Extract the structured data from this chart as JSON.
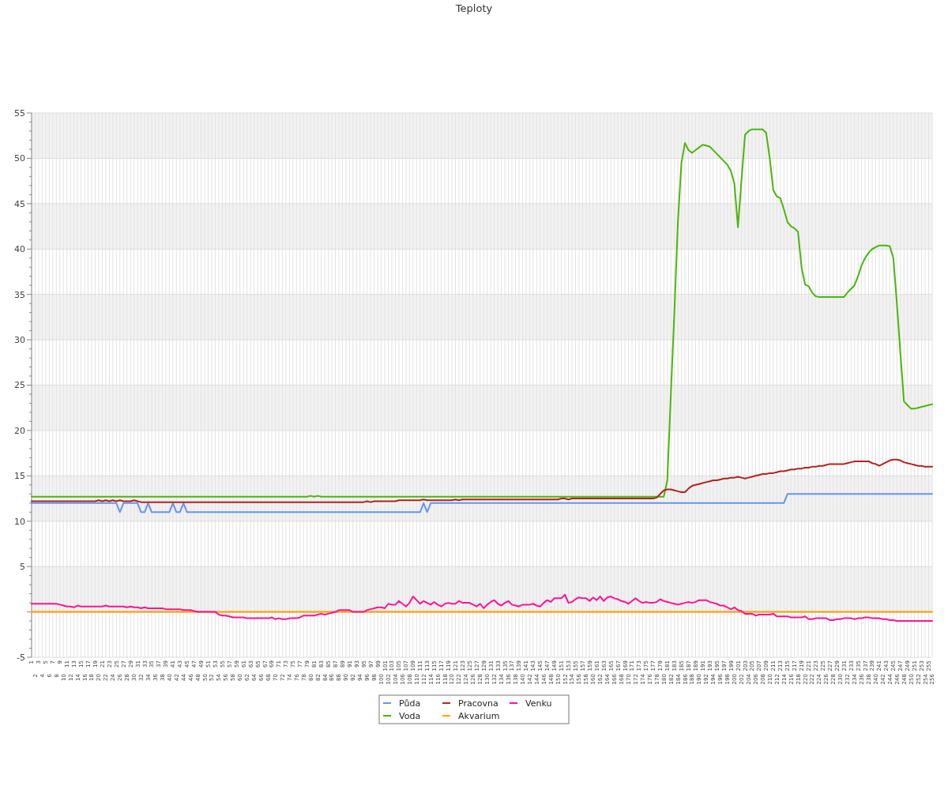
{
  "chart_data": {
    "type": "line",
    "title": "Teploty",
    "categories": [
      "1",
      "2",
      "3",
      "4",
      "5",
      "6",
      "7",
      "8",
      "9",
      "10",
      "11",
      "12",
      "13",
      "14",
      "15",
      "16",
      "17",
      "18",
      "19",
      "20",
      "21",
      "22",
      "23",
      "24",
      "25",
      "26",
      "27",
      "28",
      "29",
      "30",
      "31",
      "32",
      "33",
      "34",
      "35",
      "36",
      "37",
      "38",
      "39",
      "40",
      "41",
      "42",
      "43",
      "44",
      "45",
      "46",
      "47",
      "48",
      "49",
      "50",
      "51",
      "52",
      "53",
      "54",
      "55",
      "56",
      "57",
      "58",
      "59",
      "60",
      "61",
      "62",
      "63",
      "64",
      "65",
      "66",
      "67",
      "68",
      "69",
      "70",
      "71",
      "72",
      "73",
      "74",
      "75",
      "76",
      "77",
      "78",
      "79",
      "80",
      "81",
      "82",
      "83",
      "84",
      "85",
      "86",
      "87",
      "88",
      "89",
      "90",
      "91",
      "92",
      "93",
      "94",
      "95",
      "96",
      "97",
      "98",
      "99",
      "100",
      "101",
      "102",
      "103",
      "104",
      "105",
      "106",
      "107",
      "108",
      "109",
      "110",
      "111",
      "112",
      "113",
      "114",
      "115",
      "116",
      "117",
      "118",
      "119",
      "120",
      "121",
      "122",
      "123",
      "124",
      "125",
      "126",
      "127",
      "128",
      "129",
      "130",
      "131",
      "132",
      "133",
      "134",
      "135",
      "136",
      "137",
      "138",
      "139",
      "140",
      "141",
      "142",
      "143",
      "144",
      "145",
      "146",
      "147",
      "148",
      "149",
      "150",
      "151",
      "152",
      "153",
      "154",
      "155",
      "156",
      "157",
      "158",
      "159",
      "160",
      "161",
      "162",
      "163",
      "164",
      "165",
      "166",
      "167",
      "168",
      "169",
      "170",
      "171",
      "172",
      "173",
      "174",
      "175",
      "176",
      "177",
      "178",
      "179",
      "180",
      "181",
      "182",
      "183",
      "184",
      "185",
      "186",
      "187",
      "188",
      "189",
      "190",
      "191",
      "192",
      "193",
      "194",
      "195",
      "196",
      "197",
      "198",
      "199",
      "200",
      "201",
      "202",
      "203",
      "204",
      "205",
      "206",
      "207",
      "208",
      "209",
      "210",
      "211",
      "212",
      "213",
      "214",
      "215",
      "216",
      "217",
      "218",
      "219",
      "220",
      "221",
      "222",
      "223",
      "224",
      "225",
      "226",
      "227",
      "228",
      "229",
      "230",
      "231",
      "232",
      "233",
      "234",
      "235",
      "236",
      "237",
      "238",
      "239",
      "240",
      "241",
      "242",
      "243",
      "244",
      "245",
      "246",
      "247",
      "248",
      "249",
      "250",
      "251",
      "252",
      "253",
      "254",
      "255",
      "256"
    ],
    "ylim": [
      -5,
      55
    ],
    "yticks": [
      -5,
      {
        "value": -4,
        "label": null
      },
      {
        "value": -3,
        "label": null
      },
      {
        "value": -2,
        "label": null
      },
      {
        "value": -1,
        "label": null
      },
      {
        "value": 0,
        "label": null
      },
      {
        "value": 1,
        "label": null
      },
      {
        "value": 2,
        "label": null
      },
      {
        "value": 3,
        "label": null
      },
      {
        "value": 4,
        "label": null
      },
      5,
      {
        "value": 6,
        "label": null
      },
      {
        "value": 7,
        "label": null
      },
      {
        "value": 8,
        "label": null
      },
      {
        "value": 9,
        "label": null
      },
      10,
      {
        "value": 11,
        "label": null
      },
      {
        "value": 12,
        "label": null
      },
      {
        "value": 13,
        "label": null
      },
      {
        "value": 14,
        "label": null
      },
      15,
      {
        "value": 16,
        "label": null
      },
      {
        "value": 17,
        "label": null
      },
      {
        "value": 18,
        "label": null
      },
      {
        "value": 19,
        "label": null
      },
      20,
      {
        "value": 21,
        "label": null
      },
      {
        "value": 22,
        "label": null
      },
      {
        "value": 23,
        "label": null
      },
      {
        "value": 24,
        "label": null
      },
      25,
      {
        "value": 26,
        "label": null
      },
      {
        "value": 27,
        "label": null
      },
      {
        "value": 28,
        "label": null
      },
      {
        "value": 29,
        "label": null
      },
      30,
      {
        "value": 31,
        "label": null
      },
      {
        "value": 32,
        "label": null
      },
      {
        "value": 33,
        "label": null
      },
      {
        "value": 34,
        "label": null
      },
      35,
      {
        "value": 36,
        "label": null
      },
      {
        "value": 37,
        "label": null
      },
      {
        "value": 38,
        "label": null
      },
      {
        "value": 39,
        "label": null
      },
      40,
      {
        "value": 41,
        "label": null
      },
      {
        "value": 42,
        "label": null
      },
      {
        "value": 43,
        "label": null
      },
      {
        "value": 44,
        "label": null
      },
      45,
      {
        "value": 46,
        "label": null
      },
      {
        "value": 47,
        "label": null
      },
      {
        "value": 48,
        "label": null
      },
      {
        "value": 49,
        "label": null
      },
      50,
      {
        "value": 51,
        "label": null
      },
      {
        "value": 52,
        "label": null
      },
      {
        "value": 53,
        "label": null
      },
      {
        "value": 54,
        "label": null
      },
      55
    ],
    "grid": true,
    "legend": "bottom",
    "marker": "none",
    "line_style": "solid",
    "series": [
      {
        "name": "Půda",
        "color": "#6495ed",
        "values": [
          12,
          12,
          12,
          12,
          12,
          12,
          12,
          12,
          12,
          12,
          12,
          12,
          12,
          12,
          12,
          12,
          12,
          12,
          12,
          12,
          12,
          12,
          12,
          12,
          12,
          11,
          12,
          12,
          12,
          12,
          12,
          11,
          11,
          12,
          11,
          11,
          11,
          11,
          11,
          11,
          12,
          11,
          11,
          12,
          11,
          11,
          11,
          11,
          11,
          11,
          11,
          11,
          11,
          11,
          11,
          11,
          11,
          11,
          11,
          11,
          11,
          11,
          11,
          11,
          11,
          11,
          11,
          11,
          11,
          11,
          11,
          11,
          11,
          11,
          11,
          11,
          11,
          11,
          11,
          11,
          11,
          11,
          11,
          11,
          11,
          11,
          11,
          11,
          11,
          11,
          11,
          11,
          11,
          11,
          11,
          11,
          11,
          11,
          11,
          11,
          11,
          11,
          11,
          11,
          11,
          11,
          11,
          11,
          11,
          11,
          11,
          12,
          11,
          12,
          12,
          12,
          12,
          12,
          12,
          12,
          12,
          12,
          12,
          12,
          12,
          12,
          12,
          12,
          12,
          12,
          12,
          12,
          12,
          12,
          12,
          12,
          12,
          12,
          12,
          12,
          12,
          12,
          12,
          12,
          12,
          12,
          12,
          12,
          12,
          12,
          12,
          12,
          12,
          12,
          12,
          12,
          12,
          12,
          12,
          12,
          12,
          12,
          12,
          12,
          12,
          12,
          12,
          12,
          12,
          12,
          12,
          12,
          12,
          12,
          12,
          12,
          12,
          12,
          12,
          12,
          12,
          12,
          12,
          12,
          12,
          12,
          12,
          12,
          12,
          12,
          12,
          12,
          12,
          12,
          12,
          12,
          12,
          12,
          12,
          12,
          12,
          12,
          12,
          12,
          12,
          12,
          12,
          12,
          12,
          12,
          12,
          12,
          12,
          12,
          13,
          13,
          13,
          13,
          13,
          13,
          13,
          13,
          13,
          13,
          13,
          13,
          13,
          13,
          13,
          13,
          13,
          13,
          13,
          13,
          13,
          13,
          13,
          13,
          13,
          13,
          13,
          13,
          13,
          13,
          13,
          13,
          13,
          13,
          13,
          13,
          13,
          13,
          13,
          13,
          13,
          13
        ]
      },
      {
        "name": "Voda",
        "color": "#4cb50c",
        "values": [
          12.7,
          12.7,
          12.7,
          12.7,
          12.7,
          12.7,
          12.7,
          12.7,
          12.7,
          12.7,
          12.7,
          12.7,
          12.7,
          12.7,
          12.7,
          12.7,
          12.7,
          12.7,
          12.7,
          12.7,
          12.7,
          12.7,
          12.7,
          12.7,
          12.7,
          12.7,
          12.7,
          12.7,
          12.7,
          12.7,
          12.7,
          12.7,
          12.7,
          12.7,
          12.7,
          12.7,
          12.7,
          12.7,
          12.7,
          12.7,
          12.7,
          12.7,
          12.7,
          12.7,
          12.7,
          12.7,
          12.7,
          12.7,
          12.7,
          12.7,
          12.7,
          12.7,
          12.7,
          12.7,
          12.7,
          12.7,
          12.7,
          12.7,
          12.7,
          12.7,
          12.7,
          12.7,
          12.7,
          12.7,
          12.7,
          12.7,
          12.7,
          12.7,
          12.7,
          12.7,
          12.7,
          12.7,
          12.7,
          12.7,
          12.7,
          12.7,
          12.7,
          12.7,
          12.7,
          12.8,
          12.7,
          12.8,
          12.7,
          12.7,
          12.7,
          12.7,
          12.7,
          12.7,
          12.7,
          12.7,
          12.7,
          12.7,
          12.7,
          12.7,
          12.7,
          12.7,
          12.7,
          12.7,
          12.7,
          12.7,
          12.7,
          12.7,
          12.7,
          12.7,
          12.7,
          12.7,
          12.7,
          12.7,
          12.7,
          12.7,
          12.7,
          12.7,
          12.7,
          12.7,
          12.7,
          12.7,
          12.7,
          12.7,
          12.7,
          12.7,
          12.7,
          12.7,
          12.7,
          12.7,
          12.7,
          12.7,
          12.7,
          12.7,
          12.7,
          12.7,
          12.7,
          12.7,
          12.7,
          12.7,
          12.7,
          12.7,
          12.7,
          12.7,
          12.7,
          12.7,
          12.7,
          12.7,
          12.7,
          12.7,
          12.7,
          12.7,
          12.7,
          12.7,
          12.7,
          12.7,
          12.7,
          12.7,
          12.7,
          12.7,
          12.7,
          12.7,
          12.7,
          12.7,
          12.7,
          12.7,
          12.7,
          12.7,
          12.7,
          12.7,
          12.7,
          12.7,
          12.7,
          12.7,
          12.7,
          12.7,
          12.7,
          12.7,
          12.7,
          12.7,
          12.7,
          12.7,
          12.7,
          12.7,
          12.7,
          12.7,
          14.5,
          24,
          33,
          43,
          49.5,
          51.7,
          50.9,
          50.6,
          50.9,
          51.2,
          51.5,
          51.4,
          51.3,
          50.9,
          50.5,
          50.1,
          49.7,
          49.3,
          48.6,
          47.2,
          42.4,
          47.6,
          52.6,
          53.0,
          53.2,
          53.2,
          53.2,
          53.2,
          52.8,
          50.0,
          46.5,
          45.8,
          45.6,
          44.4,
          43.0,
          42.5,
          42.3,
          41.9,
          38.0,
          36.1,
          35.9,
          35.2,
          34.8,
          34.7,
          34.7,
          34.7,
          34.7,
          34.7,
          34.7,
          34.7,
          34.7,
          35.2,
          35.6,
          36.0,
          37.0,
          38.2,
          39.0,
          39.6,
          40.0,
          40.2,
          40.4,
          40.4,
          40.4,
          40.3,
          39.0,
          34.0,
          28.5,
          23.2,
          22.8,
          22.4,
          22.4,
          22.5,
          22.6,
          22.7,
          22.8,
          22.9
        ]
      },
      {
        "name": "Pracovna",
        "color": "#b22222",
        "values": [
          12.2,
          12.2,
          12.2,
          12.2,
          12.2,
          12.2,
          12.2,
          12.2,
          12.2,
          12.2,
          12.2,
          12.2,
          12.2,
          12.2,
          12.2,
          12.2,
          12.2,
          12.2,
          12.2,
          12.3,
          12.2,
          12.3,
          12.2,
          12.3,
          12.2,
          12.3,
          12.2,
          12.2,
          12.2,
          12.3,
          12.2,
          12.1,
          12.1,
          12.1,
          12.1,
          12.1,
          12.1,
          12.1,
          12.1,
          12.1,
          12.1,
          12.1,
          12.1,
          12.1,
          12.1,
          12.1,
          12.1,
          12.1,
          12.1,
          12.1,
          12.1,
          12.1,
          12.1,
          12.1,
          12.1,
          12.1,
          12.1,
          12.1,
          12.1,
          12.1,
          12.1,
          12.1,
          12.1,
          12.1,
          12.1,
          12.1,
          12.1,
          12.1,
          12.1,
          12.1,
          12.1,
          12.1,
          12.1,
          12.1,
          12.1,
          12.1,
          12.1,
          12.1,
          12.1,
          12.1,
          12.1,
          12.1,
          12.1,
          12.1,
          12.1,
          12.1,
          12.1,
          12.1,
          12.1,
          12.1,
          12.1,
          12.1,
          12.1,
          12.1,
          12.1,
          12.2,
          12.1,
          12.2,
          12.2,
          12.2,
          12.2,
          12.2,
          12.2,
          12.2,
          12.3,
          12.3,
          12.3,
          12.3,
          12.3,
          12.3,
          12.3,
          12.4,
          12.3,
          12.3,
          12.3,
          12.3,
          12.3,
          12.3,
          12.3,
          12.3,
          12.4,
          12.3,
          12.4,
          12.4,
          12.4,
          12.4,
          12.4,
          12.4,
          12.4,
          12.4,
          12.4,
          12.4,
          12.4,
          12.4,
          12.4,
          12.4,
          12.4,
          12.4,
          12.4,
          12.4,
          12.4,
          12.4,
          12.4,
          12.4,
          12.4,
          12.4,
          12.4,
          12.4,
          12.4,
          12.4,
          12.5,
          12.5,
          12.4,
          12.5,
          12.5,
          12.5,
          12.5,
          12.5,
          12.5,
          12.5,
          12.5,
          12.5,
          12.5,
          12.5,
          12.5,
          12.5,
          12.5,
          12.5,
          12.5,
          12.5,
          12.5,
          12.5,
          12.5,
          12.5,
          12.5,
          12.5,
          12.5,
          12.6,
          13.0,
          13.4,
          13.5,
          13.5,
          13.4,
          13.3,
          13.2,
          13.2,
          13.6,
          13.9,
          14.0,
          14.1,
          14.2,
          14.3,
          14.4,
          14.5,
          14.5,
          14.6,
          14.7,
          14.7,
          14.8,
          14.8,
          14.9,
          14.8,
          14.7,
          14.8,
          14.9,
          15.0,
          15.1,
          15.2,
          15.2,
          15.3,
          15.3,
          15.4,
          15.5,
          15.5,
          15.6,
          15.7,
          15.7,
          15.8,
          15.8,
          15.9,
          15.9,
          16.0,
          16.0,
          16.1,
          16.1,
          16.2,
          16.3,
          16.3,
          16.3,
          16.3,
          16.3,
          16.4,
          16.5,
          16.6,
          16.6,
          16.6,
          16.6,
          16.6,
          16.4,
          16.3,
          16.1,
          16.3,
          16.5,
          16.7,
          16.8,
          16.8,
          16.7,
          16.5,
          16.4,
          16.3,
          16.2,
          16.1,
          16.1,
          16.0,
          16.0,
          16.0
        ]
      },
      {
        "name": "Akvarium",
        "color": "#ffa500",
        "values": [
          0,
          0,
          0,
          0,
          0,
          0,
          0,
          0,
          0,
          0,
          0,
          0,
          0,
          0,
          0,
          0,
          0,
          0,
          0,
          0,
          0,
          0,
          0,
          0,
          0,
          0,
          0,
          0,
          0,
          0,
          0,
          0,
          0,
          0,
          0,
          0,
          0,
          0,
          0,
          0,
          0,
          0,
          0,
          0,
          0,
          0,
          0,
          0,
          0,
          0,
          0,
          0,
          0,
          0,
          0,
          0,
          0,
          0,
          0,
          0,
          0,
          0,
          0,
          0,
          0,
          0,
          0,
          0,
          0,
          0,
          0,
          0,
          0,
          0,
          0,
          0,
          0,
          0,
          0,
          0,
          0,
          0,
          0,
          0,
          0,
          0,
          0,
          0,
          0,
          0,
          0,
          0,
          0,
          0,
          0,
          0,
          0,
          0,
          0,
          0,
          0,
          0,
          0,
          0,
          0,
          0,
          0,
          0,
          0,
          0,
          0,
          0,
          0,
          0,
          0,
          0,
          0,
          0,
          0,
          0,
          0,
          0,
          0,
          0,
          0,
          0,
          0,
          0,
          0,
          0,
          0,
          0,
          0,
          0,
          0,
          0,
          0,
          0,
          0,
          0,
          0,
          0,
          0,
          0,
          0,
          0,
          0,
          0,
          0,
          0,
          0,
          0,
          0,
          0,
          0,
          0,
          0,
          0,
          0,
          0,
          0,
          0,
          0,
          0,
          0,
          0,
          0,
          0,
          0,
          0,
          0,
          0,
          0,
          0,
          0,
          0,
          0,
          0,
          0,
          0,
          0,
          0,
          0,
          0,
          0,
          0,
          0,
          0,
          0,
          0,
          0,
          0,
          0,
          0,
          0,
          0,
          0,
          0,
          0,
          0,
          0,
          0,
          0,
          0,
          0,
          0,
          0,
          0,
          0,
          0,
          0,
          0,
          0,
          0,
          0,
          0,
          0,
          0,
          0,
          0,
          0,
          0,
          0,
          0,
          0,
          0,
          0,
          0,
          0,
          0,
          0,
          0,
          0,
          0,
          0,
          0,
          0,
          0,
          0,
          0,
          0,
          0,
          0,
          0,
          0,
          0,
          0,
          0,
          0,
          0,
          0,
          0,
          0,
          0,
          0,
          0
        ]
      },
      {
        "name": "Venku",
        "color": "#ff1493",
        "values": [
          0.9,
          0.9,
          0.9,
          0.9,
          0.9,
          0.9,
          0.9,
          0.9,
          0.8,
          0.7,
          0.6,
          0.6,
          0.5,
          0.7,
          0.6,
          0.6,
          0.6,
          0.6,
          0.6,
          0.6,
          0.6,
          0.7,
          0.6,
          0.6,
          0.6,
          0.6,
          0.6,
          0.5,
          0.6,
          0.5,
          0.5,
          0.4,
          0.5,
          0.4,
          0.4,
          0.4,
          0.4,
          0.4,
          0.3,
          0.3,
          0.3,
          0.3,
          0.3,
          0.2,
          0.2,
          0.2,
          0.1,
          0,
          0,
          0,
          0,
          0,
          0,
          -0.3,
          -0.4,
          -0.4,
          -0.5,
          -0.6,
          -0.6,
          -0.6,
          -0.6,
          -0.7,
          -0.7,
          -0.7,
          -0.7,
          -0.7,
          -0.7,
          -0.7,
          -0.6,
          -0.8,
          -0.7,
          -0.8,
          -0.8,
          -0.7,
          -0.7,
          -0.7,
          -0.6,
          -0.4,
          -0.4,
          -0.4,
          -0.4,
          -0.3,
          -0.2,
          -0.3,
          -0.2,
          -0.1,
          0,
          0.2,
          0.2,
          0.2,
          0.2,
          0,
          0,
          0,
          0,
          0.2,
          0.3,
          0.4,
          0.5,
          0.5,
          0.4,
          0.9,
          0.8,
          0.8,
          1.2,
          0.9,
          0.6,
          1.0,
          1.7,
          1.3,
          0.9,
          1.2,
          1.0,
          0.8,
          1.1,
          0.8,
          0.6,
          0.9,
          1.0,
          0.9,
          0.9,
          1.2,
          1.0,
          1.0,
          1.0,
          0.8,
          0.6,
          0.9,
          0.4,
          0.8,
          1.1,
          1.3,
          0.9,
          0.7,
          1.0,
          1.2,
          0.8,
          0.7,
          0.6,
          0.8,
          0.8,
          0.8,
          0.9,
          0.7,
          0.6,
          1.0,
          1.3,
          1.1,
          1.5,
          1.5,
          1.5,
          1.9,
          1.0,
          1.1,
          1.4,
          1.6,
          1.5,
          1.5,
          1.2,
          1.6,
          1.3,
          1.7,
          1.2,
          1.6,
          1.7,
          1.5,
          1.4,
          1.2,
          1.1,
          0.9,
          1.2,
          1.5,
          1.2,
          1.0,
          1.1,
          1.0,
          1.0,
          1.1,
          1.4,
          1.2,
          1.1,
          1.0,
          0.9,
          0.8,
          0.9,
          1.0,
          1.1,
          1.0,
          1.1,
          1.3,
          1.3,
          1.3,
          1.1,
          1.0,
          0.9,
          0.7,
          0.7,
          0.5,
          0.3,
          0.5,
          0.2,
          0.1,
          -0.2,
          -0.2,
          -0.2,
          -0.4,
          -0.3,
          -0.3,
          -0.3,
          -0.3,
          -0.2,
          -0.5,
          -0.5,
          -0.5,
          -0.5,
          -0.6,
          -0.6,
          -0.6,
          -0.6,
          -0.5,
          -0.8,
          -0.8,
          -0.7,
          -0.7,
          -0.7,
          -0.7,
          -0.9,
          -0.9,
          -0.8,
          -0.8,
          -0.7,
          -0.7,
          -0.7,
          -0.8,
          -0.7,
          -0.7,
          -0.6,
          -0.6,
          -0.7,
          -0.7,
          -0.7,
          -0.8,
          -0.8,
          -0.9,
          -0.9,
          -1.0,
          -1.0,
          -1.0,
          -1.0,
          -1.0,
          -1.0,
          -1.0,
          -1.0,
          -1.0,
          -1.0,
          -1.0
        ]
      }
    ]
  }
}
